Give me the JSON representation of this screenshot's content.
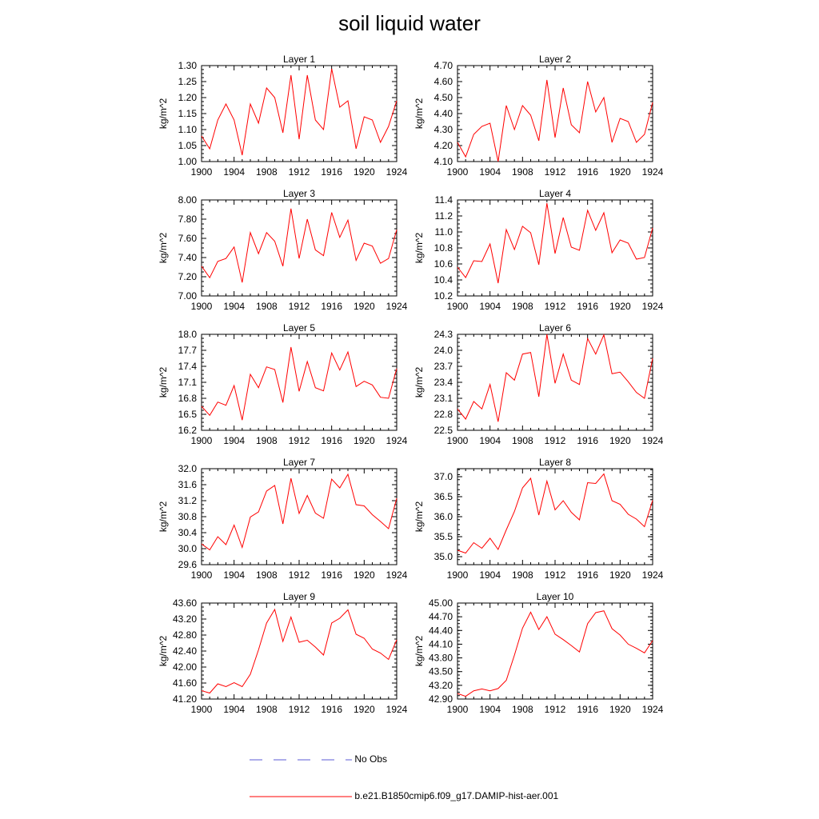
{
  "title": "soil liquid water",
  "legend": [
    {
      "label": "No Obs",
      "color": "#5b5bd6",
      "style": "dashed"
    },
    {
      "label": "b.e21.B1850cmip6.f09_g17.DAMIP-hist-aer.001",
      "color": "#ff0000",
      "style": "solid"
    }
  ],
  "chart_data": [
    {
      "type": "line",
      "title": "Layer 1",
      "ylabel": "kg/m^2",
      "xlim": [
        1900,
        1924
      ],
      "ylim": [
        1.0,
        1.3
      ],
      "xticks": [
        "1900",
        "1904",
        "1908",
        "1912",
        "1916",
        "1920",
        "1924"
      ],
      "yticks": [
        "1.00",
        "1.05",
        "1.10",
        "1.15",
        "1.20",
        "1.25",
        "1.30"
      ],
      "x": [
        1900,
        1901,
        1902,
        1903,
        1904,
        1905,
        1906,
        1907,
        1908,
        1909,
        1910,
        1911,
        1912,
        1913,
        1914,
        1915,
        1916,
        1917,
        1918,
        1919,
        1920,
        1921,
        1922,
        1923,
        1924
      ],
      "series": [
        {
          "color": "#ff0000",
          "values": [
            1.08,
            1.04,
            1.13,
            1.18,
            1.13,
            1.02,
            1.18,
            1.12,
            1.23,
            1.2,
            1.09,
            1.27,
            1.07,
            1.27,
            1.13,
            1.1,
            1.29,
            1.17,
            1.19,
            1.04,
            1.14,
            1.13,
            1.06,
            1.11,
            1.19
          ]
        }
      ]
    },
    {
      "type": "line",
      "title": "Layer 2",
      "ylabel": "kg/m^2",
      "xlim": [
        1900,
        1924
      ],
      "ylim": [
        4.1,
        4.7
      ],
      "xticks": [
        "1900",
        "1904",
        "1908",
        "1912",
        "1916",
        "1920",
        "1924"
      ],
      "yticks": [
        "4.10",
        "4.20",
        "4.30",
        "4.40",
        "4.50",
        "4.60",
        "4.70"
      ],
      "x": [
        1900,
        1901,
        1902,
        1903,
        1904,
        1905,
        1906,
        1907,
        1908,
        1909,
        1910,
        1911,
        1912,
        1913,
        1914,
        1915,
        1916,
        1917,
        1918,
        1919,
        1920,
        1921,
        1922,
        1923,
        1924
      ],
      "series": [
        {
          "color": "#ff0000",
          "values": [
            4.22,
            4.13,
            4.27,
            4.32,
            4.34,
            4.1,
            4.45,
            4.3,
            4.45,
            4.39,
            4.23,
            4.61,
            4.25,
            4.56,
            4.33,
            4.28,
            4.6,
            4.41,
            4.5,
            4.22,
            4.37,
            4.35,
            4.22,
            4.27,
            4.47
          ]
        }
      ]
    },
    {
      "type": "line",
      "title": "Layer 3",
      "ylabel": "kg/m^2",
      "xlim": [
        1900,
        1924
      ],
      "ylim": [
        7.0,
        8.0
      ],
      "xticks": [
        "1900",
        "1904",
        "1908",
        "1912",
        "1916",
        "1920",
        "1924"
      ],
      "yticks": [
        "7.00",
        "7.20",
        "7.40",
        "7.60",
        "7.80",
        "8.00"
      ],
      "x": [
        1900,
        1901,
        1902,
        1903,
        1904,
        1905,
        1906,
        1907,
        1908,
        1909,
        1910,
        1911,
        1912,
        1913,
        1914,
        1915,
        1916,
        1917,
        1918,
        1919,
        1920,
        1921,
        1922,
        1923,
        1924
      ],
      "series": [
        {
          "color": "#ff0000",
          "values": [
            7.31,
            7.19,
            7.36,
            7.39,
            7.51,
            7.14,
            7.66,
            7.44,
            7.66,
            7.57,
            7.31,
            7.91,
            7.39,
            7.8,
            7.48,
            7.42,
            7.87,
            7.61,
            7.79,
            7.37,
            7.55,
            7.52,
            7.34,
            7.39,
            7.69
          ]
        }
      ]
    },
    {
      "type": "line",
      "title": "Layer 4",
      "ylabel": "kg/m^2",
      "xlim": [
        1900,
        1924
      ],
      "ylim": [
        10.2,
        11.4
      ],
      "xticks": [
        "1900",
        "1904",
        "1908",
        "1912",
        "1916",
        "1920",
        "1924"
      ],
      "yticks": [
        "10.2",
        "10.4",
        "10.6",
        "10.8",
        "11.0",
        "11.2",
        "11.4"
      ],
      "x": [
        1900,
        1901,
        1902,
        1903,
        1904,
        1905,
        1906,
        1907,
        1908,
        1909,
        1910,
        1911,
        1912,
        1913,
        1914,
        1915,
        1916,
        1917,
        1918,
        1919,
        1920,
        1921,
        1922,
        1923,
        1924
      ],
      "series": [
        {
          "color": "#ff0000",
          "values": [
            10.56,
            10.43,
            10.64,
            10.63,
            10.85,
            10.36,
            11.03,
            10.78,
            11.07,
            10.99,
            10.59,
            11.36,
            10.73,
            11.18,
            10.81,
            10.77,
            11.27,
            11.02,
            11.24,
            10.74,
            10.9,
            10.86,
            10.66,
            10.68,
            11.05
          ]
        }
      ]
    },
    {
      "type": "line",
      "title": "Layer 5",
      "ylabel": "kg/m^2",
      "xlim": [
        1900,
        1924
      ],
      "ylim": [
        16.2,
        18.0
      ],
      "xticks": [
        "1900",
        "1904",
        "1908",
        "1912",
        "1916",
        "1920",
        "1924"
      ],
      "yticks": [
        "16.2",
        "16.5",
        "16.8",
        "17.1",
        "17.4",
        "17.7",
        "18.0"
      ],
      "x": [
        1900,
        1901,
        1902,
        1903,
        1904,
        1905,
        1906,
        1907,
        1908,
        1909,
        1910,
        1911,
        1912,
        1913,
        1914,
        1915,
        1916,
        1917,
        1918,
        1919,
        1920,
        1921,
        1922,
        1923,
        1924
      ],
      "series": [
        {
          "color": "#ff0000",
          "values": [
            16.65,
            16.48,
            16.73,
            16.67,
            17.04,
            16.39,
            17.25,
            17.0,
            17.39,
            17.34,
            16.72,
            17.76,
            16.93,
            17.49,
            17.0,
            16.94,
            17.65,
            17.33,
            17.67,
            17.02,
            17.12,
            17.05,
            16.82,
            16.8,
            17.36
          ]
        }
      ]
    },
    {
      "type": "line",
      "title": "Layer 6",
      "ylabel": "kg/m^2",
      "xlim": [
        1900,
        1924
      ],
      "ylim": [
        22.5,
        24.3
      ],
      "xticks": [
        "1900",
        "1904",
        "1908",
        "1912",
        "1916",
        "1920",
        "1924"
      ],
      "yticks": [
        "22.5",
        "22.8",
        "23.1",
        "23.4",
        "23.7",
        "24.0",
        "24.3"
      ],
      "x": [
        1900,
        1901,
        1902,
        1903,
        1904,
        1905,
        1906,
        1907,
        1908,
        1909,
        1910,
        1911,
        1912,
        1913,
        1914,
        1915,
        1916,
        1917,
        1918,
        1919,
        1920,
        1921,
        1922,
        1923,
        1924
      ],
      "series": [
        {
          "color": "#ff0000",
          "values": [
            22.9,
            22.71,
            23.04,
            22.9,
            23.36,
            22.66,
            23.58,
            23.44,
            23.93,
            23.96,
            23.13,
            24.3,
            23.38,
            23.93,
            23.44,
            23.36,
            24.22,
            23.93,
            24.29,
            23.56,
            23.59,
            23.41,
            23.21,
            23.1,
            23.85
          ]
        }
      ]
    },
    {
      "type": "line",
      "title": "Layer 7",
      "ylabel": "kg/m^2",
      "xlim": [
        1900,
        1924
      ],
      "ylim": [
        29.6,
        32.0
      ],
      "xticks": [
        "1900",
        "1904",
        "1908",
        "1912",
        "1916",
        "1920",
        "1924"
      ],
      "yticks": [
        "29.6",
        "30.0",
        "30.4",
        "30.8",
        "31.2",
        "31.6",
        "32.0"
      ],
      "x": [
        1900,
        1901,
        1902,
        1903,
        1904,
        1905,
        1906,
        1907,
        1908,
        1909,
        1910,
        1911,
        1912,
        1913,
        1914,
        1915,
        1916,
        1917,
        1918,
        1919,
        1920,
        1921,
        1922,
        1923,
        1924
      ],
      "series": [
        {
          "color": "#ff0000",
          "values": [
            30.12,
            29.97,
            30.3,
            30.1,
            30.59,
            30.03,
            30.79,
            30.92,
            31.44,
            31.58,
            30.62,
            31.76,
            30.88,
            31.33,
            30.89,
            30.76,
            31.74,
            31.52,
            31.86,
            31.1,
            31.07,
            30.85,
            30.68,
            30.5,
            31.26
          ]
        }
      ]
    },
    {
      "type": "line",
      "title": "Layer 8",
      "ylabel": "kg/m^2",
      "xlim": [
        1900,
        1924
      ],
      "ylim": [
        34.8,
        37.2
      ],
      "xticks": [
        "1900",
        "1904",
        "1908",
        "1912",
        "1916",
        "1920",
        "1924"
      ],
      "yticks": [
        "35.0",
        "35.5",
        "36.0",
        "36.5",
        "37.0"
      ],
      "x": [
        1900,
        1901,
        1902,
        1903,
        1904,
        1905,
        1906,
        1907,
        1908,
        1909,
        1910,
        1911,
        1912,
        1913,
        1914,
        1915,
        1916,
        1917,
        1918,
        1919,
        1920,
        1921,
        1922,
        1923,
        1924
      ],
      "series": [
        {
          "color": "#ff0000",
          "values": [
            35.16,
            35.09,
            35.35,
            35.21,
            35.46,
            35.18,
            35.67,
            36.13,
            36.72,
            36.96,
            36.04,
            36.89,
            36.17,
            36.4,
            36.11,
            35.92,
            36.85,
            36.83,
            37.07,
            36.4,
            36.31,
            36.06,
            35.94,
            35.75,
            36.41
          ]
        }
      ]
    },
    {
      "type": "line",
      "title": "Layer 9",
      "ylabel": "kg/m^2",
      "xlim": [
        1900,
        1924
      ],
      "ylim": [
        41.2,
        43.6
      ],
      "xticks": [
        "1900",
        "1904",
        "1908",
        "1912",
        "1916",
        "1920",
        "1924"
      ],
      "yticks": [
        "41.20",
        "41.60",
        "42.00",
        "42.40",
        "42.80",
        "43.20",
        "43.60"
      ],
      "x": [
        1900,
        1901,
        1902,
        1903,
        1904,
        1905,
        1906,
        1907,
        1908,
        1909,
        1910,
        1911,
        1912,
        1913,
        1914,
        1915,
        1916,
        1917,
        1918,
        1919,
        1920,
        1921,
        1922,
        1923,
        1924
      ],
      "series": [
        {
          "color": "#ff0000",
          "values": [
            41.41,
            41.35,
            41.58,
            41.51,
            41.61,
            41.51,
            41.82,
            42.43,
            43.1,
            43.44,
            42.64,
            43.25,
            42.62,
            42.67,
            42.5,
            42.3,
            43.1,
            43.22,
            43.43,
            42.82,
            42.72,
            42.45,
            42.35,
            42.19,
            42.68
          ]
        }
      ]
    },
    {
      "type": "line",
      "title": "Layer 10",
      "ylabel": "kg/m^2",
      "xlim": [
        1900,
        1924
      ],
      "ylim": [
        42.9,
        45.0
      ],
      "xticks": [
        "1900",
        "1904",
        "1908",
        "1912",
        "1916",
        "1920",
        "1924"
      ],
      "yticks": [
        "42.90",
        "43.20",
        "43.50",
        "43.80",
        "44.10",
        "44.40",
        "44.70",
        "45.00"
      ],
      "x": [
        1900,
        1901,
        1902,
        1903,
        1904,
        1905,
        1906,
        1907,
        1908,
        1909,
        1910,
        1911,
        1912,
        1913,
        1914,
        1915,
        1916,
        1917,
        1918,
        1919,
        1920,
        1921,
        1922,
        1923,
        1924
      ],
      "series": [
        {
          "color": "#ff0000",
          "values": [
            43.02,
            42.96,
            43.08,
            43.12,
            43.08,
            43.13,
            43.31,
            43.86,
            44.45,
            44.8,
            44.42,
            44.7,
            44.32,
            44.2,
            44.07,
            43.93,
            44.55,
            44.79,
            44.83,
            44.44,
            44.3,
            44.1,
            44.01,
            43.91,
            44.18
          ]
        }
      ]
    }
  ]
}
